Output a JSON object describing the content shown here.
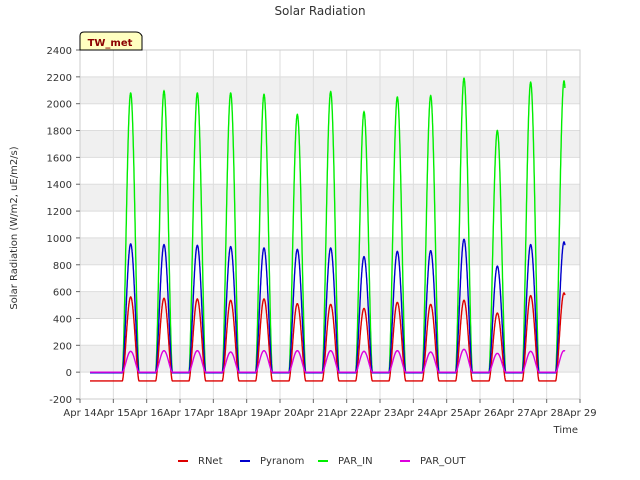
{
  "chart_data": {
    "type": "line",
    "title": "Solar Radiation",
    "xlabel": "Time",
    "ylabel": "Solar Radiation (W/m2, uE/m2/s)",
    "site_label": "TW_met",
    "ylim": [
      -200,
      2400
    ],
    "yticks": [
      -200,
      0,
      200,
      400,
      600,
      800,
      1000,
      1200,
      1400,
      1600,
      1800,
      2000,
      2200,
      2400
    ],
    "xlim": [
      14,
      29
    ],
    "xticks": [
      {
        "pos": 14,
        "label": "Apr 14"
      },
      {
        "pos": 15,
        "label": "Apr 15"
      },
      {
        "pos": 16,
        "label": "Apr 16"
      },
      {
        "pos": 17,
        "label": "Apr 17"
      },
      {
        "pos": 18,
        "label": "Apr 18"
      },
      {
        "pos": 19,
        "label": "Apr 19"
      },
      {
        "pos": 20,
        "label": "Apr 20"
      },
      {
        "pos": 21,
        "label": "Apr 21"
      },
      {
        "pos": 22,
        "label": "Apr 22"
      },
      {
        "pos": 23,
        "label": "Apr 23"
      },
      {
        "pos": 24,
        "label": "Apr 24"
      },
      {
        "pos": 25,
        "label": "Apr 25"
      },
      {
        "pos": 26,
        "label": "Apr 26"
      },
      {
        "pos": 27,
        "label": "Apr 27"
      },
      {
        "pos": 28,
        "label": "Apr 28"
      },
      {
        "pos": 29,
        "label": "Apr 29"
      }
    ],
    "grid": true,
    "legend_position": "bottom",
    "data_start": 14.3,
    "data_end": 28.55,
    "days": [
      15,
      16,
      17,
      18,
      19,
      20,
      21,
      22,
      23,
      24,
      25,
      26,
      27,
      28
    ],
    "series": [
      {
        "name": "RNet",
        "color": "#dd0000",
        "daily_peaks": [
          560,
          550,
          545,
          535,
          545,
          510,
          505,
          475,
          520,
          505,
          535,
          440,
          570,
          590
        ],
        "night_value": -65
      },
      {
        "name": "Pyranom",
        "color": "#0000cc",
        "daily_peaks": [
          955,
          950,
          945,
          935,
          925,
          915,
          925,
          860,
          900,
          905,
          990,
          790,
          950,
          970
        ],
        "night_value": -5
      },
      {
        "name": "PAR_IN",
        "color": "#00ee00",
        "daily_peaks": [
          2080,
          2095,
          2080,
          2080,
          2070,
          1920,
          2090,
          1940,
          2050,
          2060,
          2190,
          1800,
          2160,
          2170
        ],
        "night_value": 0
      },
      {
        "name": "PAR_OUT",
        "color": "#dd00dd",
        "daily_peaks": [
          155,
          160,
          160,
          150,
          160,
          160,
          160,
          155,
          160,
          150,
          170,
          140,
          155,
          160
        ],
        "night_value": 0
      }
    ]
  }
}
